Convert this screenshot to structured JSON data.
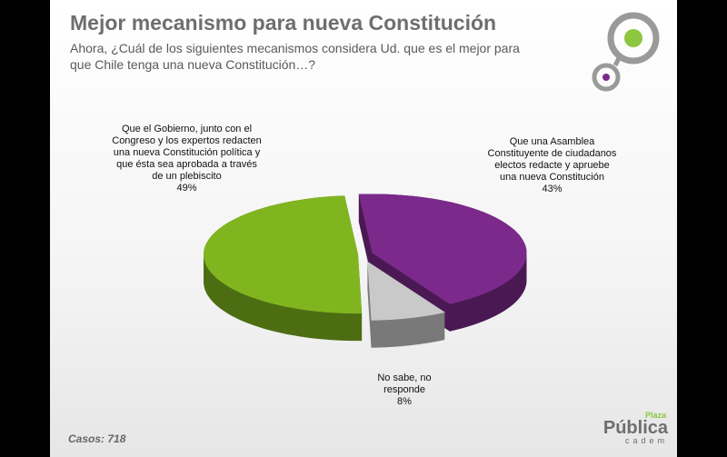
{
  "chart_data": {
    "type": "pie3d",
    "title": "Mejor mecanismo para nueva Constitución",
    "subtitle": "Ahora, ¿Cuál de los siguientes mecanismos considera Ud. que es el mejor para que Chile tenga una nueva Constitución…?",
    "categories": [
      "Que una Asamblea Constituyente de ciudadanos electos redacte y apruebe una nueva Constitución",
      "No sabe, no responde",
      "Que el Gobierno, junto con el Congreso y los expertos redacten una nueva Constitución política y que ésta sea aprobada a través de un plebiscito"
    ],
    "values": [
      43,
      8,
      49
    ],
    "value_labels": [
      "43%",
      "8%",
      "49%"
    ],
    "colors": [
      "#7b2a8c",
      "#c9c9c9",
      "#80b51f"
    ],
    "footnote": "Casos: 718"
  },
  "logo": {
    "small": "Plaza",
    "main": "Pública",
    "sub": "cadem"
  }
}
